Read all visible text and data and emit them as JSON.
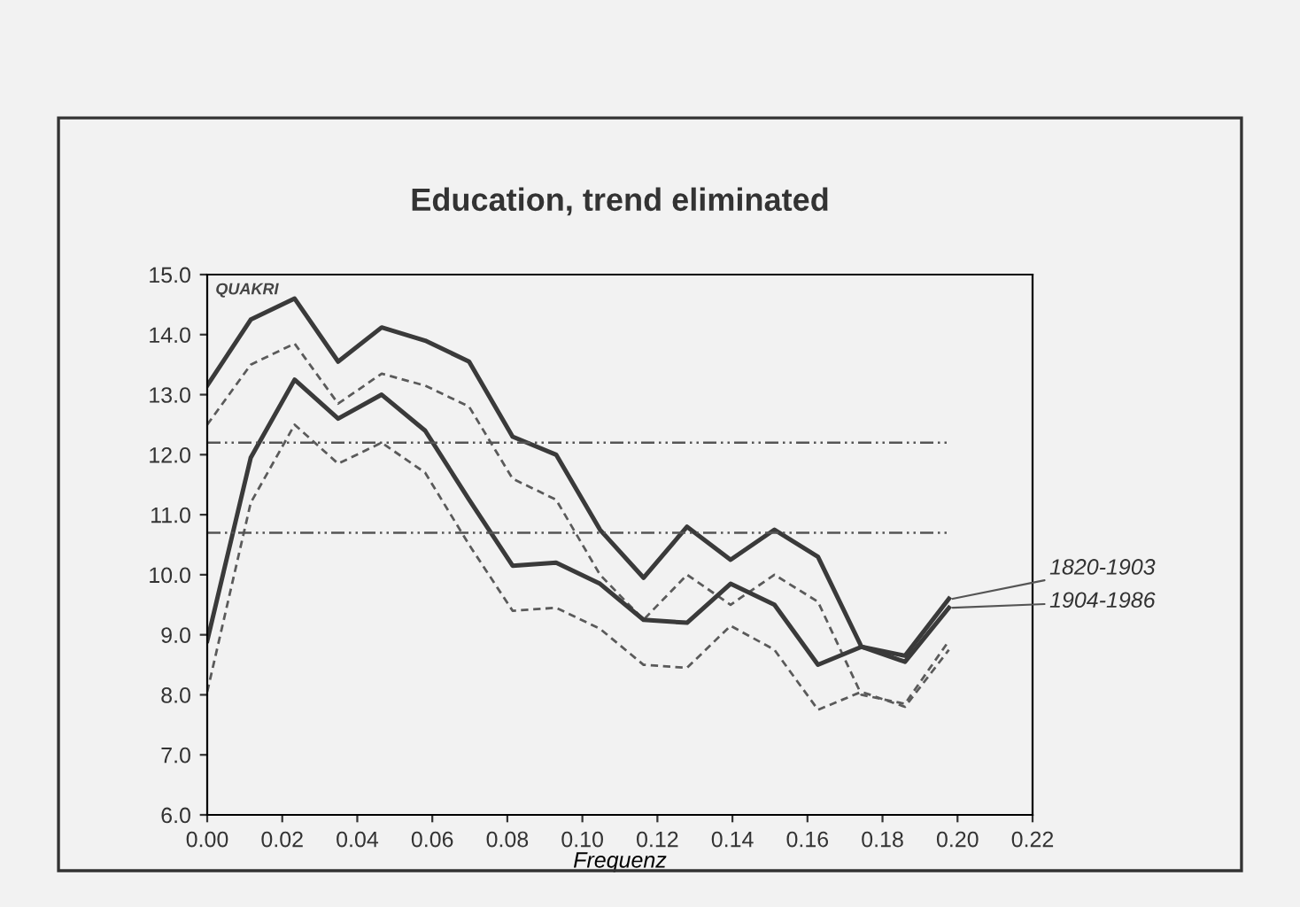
{
  "chart_data": {
    "type": "line",
    "title": "Education, trend eliminated",
    "xlabel": "Frequenz",
    "ylabel": "QUAKRI",
    "x": [
      0.0,
      0.0116,
      0.0233,
      0.0349,
      0.0465,
      0.0581,
      0.0698,
      0.0814,
      0.093,
      0.1047,
      0.1163,
      0.1279,
      0.1395,
      0.1512,
      0.1628,
      0.1744,
      0.186,
      0.1977
    ],
    "series": [
      {
        "name": "1820-1903",
        "color": "#3a3a3a",
        "line_style": "solid",
        "values": [
          13.15,
          14.25,
          14.6,
          13.55,
          14.12,
          13.9,
          13.55,
          12.3,
          12.0,
          10.75,
          9.95,
          10.8,
          10.25,
          10.75,
          10.3,
          8.8,
          8.65,
          9.6
        ]
      },
      {
        "color": "#5a5a5a",
        "line_style": "dashed",
        "values": [
          12.5,
          13.5,
          13.85,
          12.85,
          13.35,
          13.15,
          12.8,
          11.6,
          11.25,
          10.0,
          9.25,
          10.0,
          9.5,
          10.0,
          9.55,
          8.0,
          7.85,
          8.9
        ]
      },
      {
        "name": "1904-1986",
        "color": "#3a3a3a",
        "line_style": "solid",
        "values": [
          8.9,
          11.95,
          13.25,
          12.6,
          13.0,
          12.4,
          11.25,
          10.15,
          10.2,
          9.85,
          9.25,
          9.2,
          9.85,
          9.5,
          8.5,
          8.8,
          8.55,
          9.45
        ]
      },
      {
        "color": "#5a5a5a",
        "line_style": "dashed",
        "values": [
          8.05,
          11.2,
          12.5,
          11.85,
          12.2,
          11.7,
          10.5,
          9.4,
          9.45,
          9.1,
          8.5,
          8.45,
          9.15,
          8.75,
          7.75,
          8.05,
          7.8,
          8.75
        ]
      }
    ],
    "ref_lines": [
      {
        "axis": "y",
        "value": 12.2,
        "color": "#555555",
        "line_style": "dashdot"
      },
      {
        "axis": "y",
        "value": 10.7,
        "color": "#555555",
        "line_style": "dashdot"
      }
    ],
    "xlim": [
      0.0,
      0.22
    ],
    "xticks": [
      {
        "value": 0.0,
        "label": "0.00"
      },
      {
        "value": 0.02,
        "label": "0.02"
      },
      {
        "value": 0.04,
        "label": "0.04"
      },
      {
        "value": 0.06,
        "label": "0.06"
      },
      {
        "value": 0.08,
        "label": "0.08"
      },
      {
        "value": 0.1,
        "label": "0.10"
      },
      {
        "value": 0.12,
        "label": "0.12"
      },
      {
        "value": 0.14,
        "label": "0.14"
      },
      {
        "value": 0.16,
        "label": "0.16"
      },
      {
        "value": 0.18,
        "label": "0.18"
      },
      {
        "value": 0.2,
        "label": "0.20"
      },
      {
        "value": 0.22,
        "label": "0.22"
      }
    ],
    "ylim": [
      6.0,
      15.0
    ],
    "yticks": [
      {
        "value": 6,
        "label": "6.0"
      },
      {
        "value": 7,
        "label": "7.0"
      },
      {
        "value": 8,
        "label": "8.0"
      },
      {
        "value": 9,
        "label": "9.0"
      },
      {
        "value": 10,
        "label": "10.0"
      },
      {
        "value": 11,
        "label": "11.0"
      },
      {
        "value": 12,
        "label": "12.0"
      },
      {
        "value": 13,
        "label": "13.0"
      },
      {
        "value": 14,
        "label": "14.0"
      },
      {
        "value": 15,
        "label": "15.0"
      }
    ],
    "grid": false,
    "legend": false
  }
}
